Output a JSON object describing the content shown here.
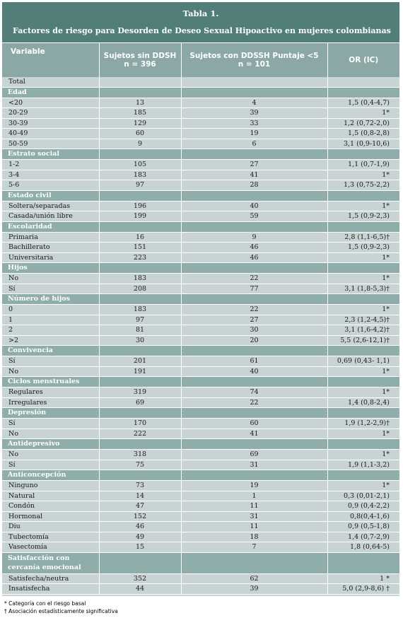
{
  "title": "Tabla 1.",
  "subtitle": "Factores de riesgo para Desorden de Deseo Sexual Hipoactivo en mujeres colombianas",
  "columns": {
    "variable": "Variable",
    "sin_l1": "Sujetos sin DDSH",
    "sin_l2": "n = 396",
    "con_l1": "Sujetos con DDSSH Puntaje <5",
    "con_l2": "n = 101",
    "or": "OR (IC)"
  },
  "total_label": "Total",
  "sections": [
    {
      "title": "Edad",
      "rows": [
        {
          "label": "<20",
          "sin": "13",
          "con": "4",
          "or": "1,5 (0,4-4,7)"
        },
        {
          "label": "20-29",
          "sin": "185",
          "con": "39",
          "or": "1*"
        },
        {
          "label": "30-39",
          "sin": "129",
          "con": "33",
          "or": "1,2 (0,72-2,0)"
        },
        {
          "label": "40-49",
          "sin": "60",
          "con": "19",
          "or": "1,5 (0,8-2,8)"
        },
        {
          "label": "50-59",
          "sin": "9",
          "con": "6",
          "or": "3,1 (0,9-10,6)"
        }
      ]
    },
    {
      "title": "Estrato social",
      "rows": [
        {
          "label": "1-2",
          "sin": "105",
          "con": "27",
          "or": "1,1 (0,7-1,9)"
        },
        {
          "label": "3-4",
          "sin": "183",
          "con": "41",
          "or": "1*"
        },
        {
          "label": "5-6",
          "sin": "97",
          "con": "28",
          "or": "1,3 (0,75-2,2)"
        }
      ]
    },
    {
      "title": "Estado civil",
      "rows": [
        {
          "label": "Soltera/separadas",
          "sin": "196",
          "con": "40",
          "or": "1*"
        },
        {
          "label": "Casada/unión libre",
          "sin": "199",
          "con": "59",
          "or": "1,5 (0,9-2,3)"
        }
      ]
    },
    {
      "title": "Escolaridad",
      "rows": [
        {
          "label": "Primaria",
          "sin": "16",
          "con": "9",
          "or": "2,8 (1,1-6,5)†"
        },
        {
          "label": "Bachillerato",
          "sin": "151",
          "con": "46",
          "or": "1,5 (0,9-2,3)"
        },
        {
          "label": "Universitaria",
          "sin": "223",
          "con": "46",
          "or": "1*"
        }
      ]
    },
    {
      "title": "Hijos",
      "rows": [
        {
          "label": "No",
          "sin": "183",
          "con": "22",
          "or": "1*"
        },
        {
          "label": "Sí",
          "sin": "208",
          "con": "77",
          "or": "3,1 (1,8-5,3)†"
        }
      ]
    },
    {
      "title": "Número de hijos",
      "rows": [
        {
          "label": "0",
          "sin": "183",
          "con": "22",
          "or": "1*"
        },
        {
          "label": "1",
          "sin": "97",
          "con": "27",
          "or": "2,3 (1,2-4,5)†"
        },
        {
          "label": "2",
          "sin": "81",
          "con": "30",
          "or": "3,1 (1,6-4,2)†"
        },
        {
          "label": ">2",
          "sin": "30",
          "con": "20",
          "or": "5,5 (2,6-12,1)†"
        }
      ]
    },
    {
      "title": "Convivencia",
      "rows": [
        {
          "label": "Sí",
          "sin": "201",
          "con": "61",
          "or": "0,69 (0,43- 1,1)"
        },
        {
          "label": "No",
          "sin": "191",
          "con": "40",
          "or": "1*"
        }
      ]
    },
    {
      "title": "Ciclos menstruales",
      "rows": [
        {
          "label": "Regulares",
          "sin": "319",
          "con": "74",
          "or": "1*"
        },
        {
          "label": "Irregulares",
          "sin": "69",
          "con": "22",
          "or": "1,4 (0,8-2,4)"
        }
      ]
    },
    {
      "title": "Depresión",
      "rows": [
        {
          "label": "Sí",
          "sin": "170",
          "con": "60",
          "or": "1,9 (1,2-2,9)†"
        },
        {
          "label": "No",
          "sin": "222",
          "con": "41",
          "or": "1*"
        }
      ]
    },
    {
      "title": "Antidepresivo",
      "rows": [
        {
          "label": "No",
          "sin": "318",
          "con": "69",
          "or": "1*"
        },
        {
          "label": "Sí",
          "sin": "75",
          "con": "31",
          "or": "1,9 (1,1-3,2)"
        }
      ]
    },
    {
      "title": "Anticoncepción",
      "rows": [
        {
          "label": "Ninguno",
          "sin": "73",
          "con": "19",
          "or": "1*"
        },
        {
          "label": "Natural",
          "sin": "14",
          "con": "1",
          "or": "0,3 (0,01-2,1)"
        },
        {
          "label": "Condón",
          "sin": "47",
          "con": "11",
          "or": "0,9 (0,4-2,2)"
        },
        {
          "label": "Hormonal",
          "sin": "152",
          "con": "31",
          "or": "0,8(0,4-1,6)"
        },
        {
          "label": "Diu",
          "sin": "46",
          "con": "11",
          "or": "0,9 (0,5-1,8)"
        },
        {
          "label": "Tubectomía",
          "sin": "49",
          "con": "18",
          "or": "1,4 (0,7-2,9)"
        },
        {
          "label": "Vasectomía",
          "sin": "15",
          "con": "7",
          "or": "1,8 (0,64-5)"
        }
      ]
    },
    {
      "title": "Satisfacción con cercanía emocional",
      "title_l1": "Satisfacción con",
      "title_l2": "cercanía emocional",
      "rows": [
        {
          "label": "Satisfecha/neutra",
          "sin": "352",
          "con": "62",
          "or": "1 *"
        },
        {
          "label": "Insatisfecha",
          "sin": "44",
          "con": "39",
          "or": "5,0 (2,9-8,6) †"
        }
      ]
    }
  ],
  "footnotes": [
    "* Categoría con el riesgo basal",
    "† Asociación estadísticamente significativa"
  ]
}
